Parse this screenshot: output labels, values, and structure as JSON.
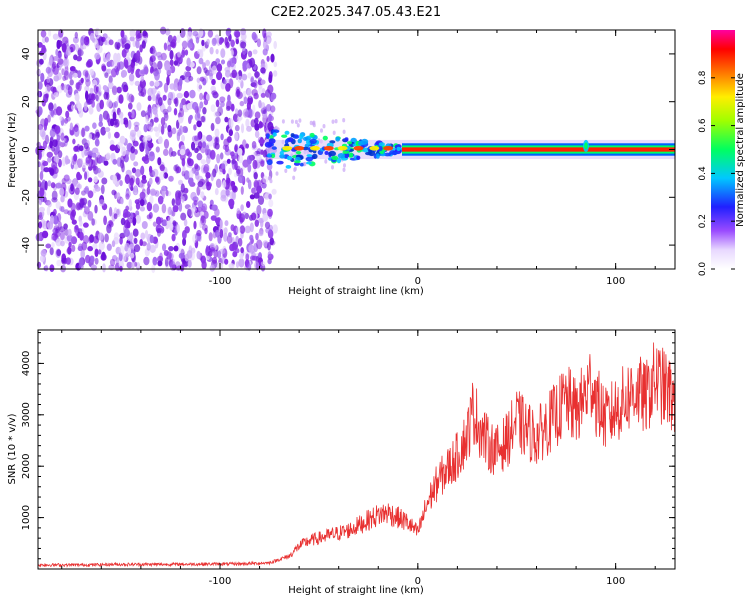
{
  "title": "C2E2.2025.347.05.43.E21",
  "chart_data": [
    {
      "type": "heatmap",
      "xlabel": "Height of straight line (km)",
      "ylabel": "Frequency (Hz)",
      "xlim": [
        -192,
        130
      ],
      "ylim": [
        -50,
        50
      ],
      "xticks": [
        -100,
        0,
        100
      ],
      "yticks": [
        -40,
        -20,
        0,
        20,
        40
      ],
      "colorbar": {
        "label": "Normalized spectral amplitude",
        "range": [
          0,
          1
        ],
        "ticks": [
          0.0,
          0.2,
          0.4,
          0.6,
          0.8
        ]
      },
      "features": {
        "noise_region_end_km": -72,
        "carrier_frequency_hz": 0,
        "transition_start_km": -76,
        "strong_line_start_km": -8,
        "bright_spot_km": 85
      }
    },
    {
      "type": "line",
      "xlabel": "Height of straight line (km)",
      "ylabel": "SNR (10 * v/v)",
      "xlim": [
        -192,
        130
      ],
      "ylim": [
        0,
        4650
      ],
      "xticks": [
        -100,
        0,
        100
      ],
      "yticks": [
        1000,
        2000,
        3000,
        4000
      ],
      "series": [
        {
          "name": "SNR",
          "color": "#e83030",
          "x": [
            -192,
            -170,
            -150,
            -130,
            -110,
            -90,
            -75,
            -65,
            -60,
            -55,
            -50,
            -45,
            -40,
            -35,
            -30,
            -25,
            -20,
            -15,
            -10,
            -5,
            0,
            5,
            10,
            15,
            20,
            25,
            28,
            32,
            36,
            40,
            45,
            50,
            55,
            60,
            65,
            70,
            75,
            80,
            85,
            88,
            90,
            95,
            100,
            105,
            110,
            115,
            120,
            125,
            130
          ],
          "values": [
            80,
            80,
            90,
            90,
            95,
            100,
            120,
            250,
            450,
            550,
            600,
            650,
            700,
            750,
            850,
            950,
            1050,
            1100,
            1000,
            900,
            700,
            1300,
            1700,
            1950,
            2200,
            2600,
            3100,
            2700,
            2400,
            2300,
            2500,
            2900,
            2700,
            2550,
            2800,
            3000,
            3300,
            3050,
            3400,
            3700,
            3300,
            2900,
            3100,
            3300,
            3500,
            3300,
            3700,
            3500,
            3300
          ]
        }
      ]
    }
  ]
}
